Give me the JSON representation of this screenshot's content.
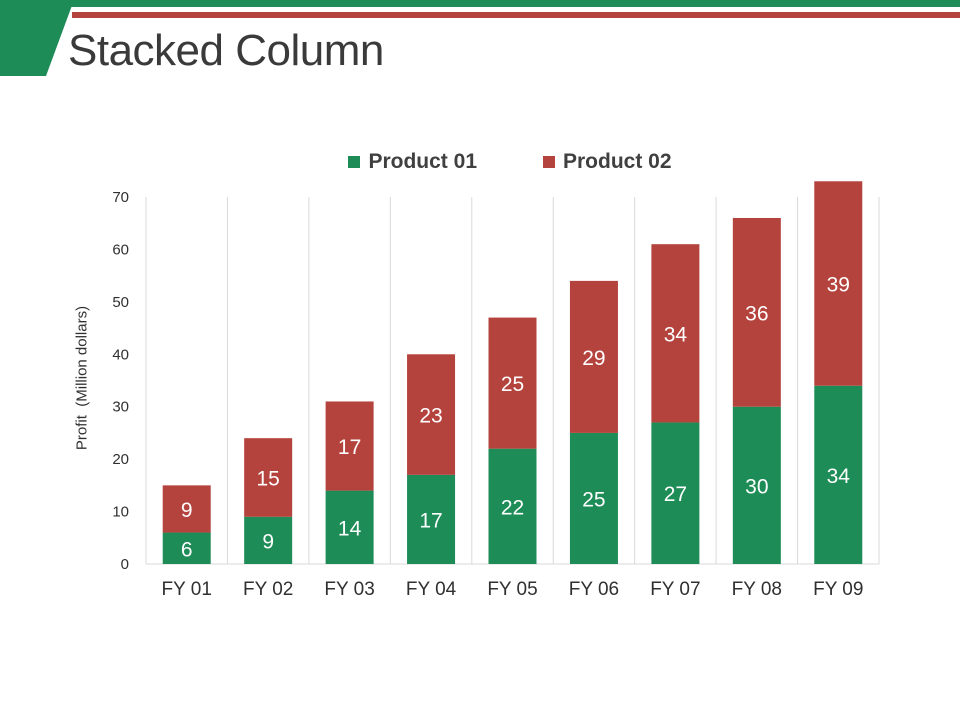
{
  "slide": {
    "title": "Stacked Column"
  },
  "colors": {
    "green": "#1e8c57",
    "red": "#b5433d",
    "title": "#3a3a3a"
  },
  "chart_data": {
    "type": "bar",
    "stacked": true,
    "title": "",
    "xlabel": "",
    "ylabel": "Profit  (Million dollars)",
    "ylim": [
      0,
      70
    ],
    "yticks": [
      0,
      10,
      20,
      30,
      40,
      50,
      60,
      70
    ],
    "grid": "vertical category separators",
    "legend_position": "top-center",
    "categories": [
      "FY 01",
      "FY 02",
      "FY 03",
      "FY 04",
      "FY 05",
      "FY 06",
      "FY 07",
      "FY 08",
      "FY 09"
    ],
    "series": [
      {
        "name": "Product 01",
        "color": "#1e8c57",
        "values": [
          6,
          9,
          14,
          17,
          22,
          25,
          27,
          30,
          34
        ]
      },
      {
        "name": "Product 02",
        "color": "#b5433d",
        "values": [
          9,
          15,
          17,
          23,
          25,
          29,
          34,
          36,
          39
        ]
      }
    ]
  }
}
